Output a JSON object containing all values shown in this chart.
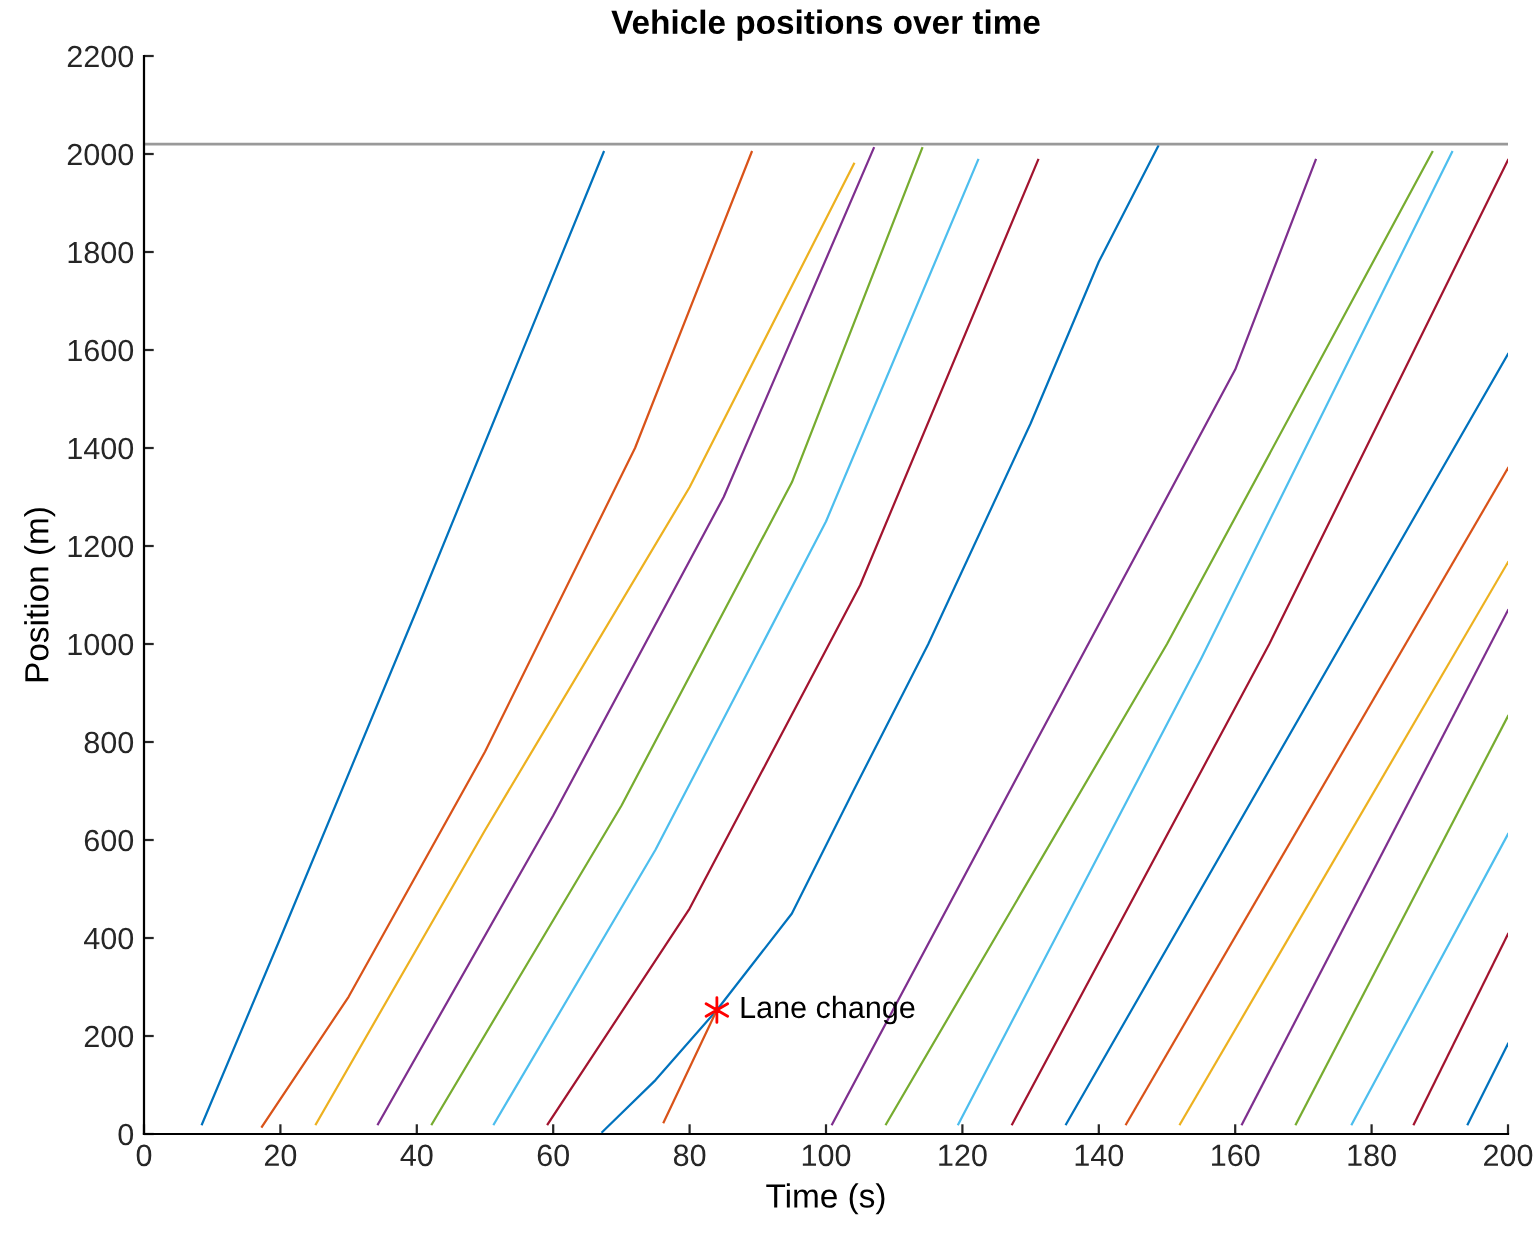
{
  "chart_data": {
    "type": "line",
    "title": "Vehicle positions over time",
    "xlabel": "Time (s)",
    "ylabel": "Position (m)",
    "xlim": [
      0,
      200
    ],
    "xticks": [
      0,
      20,
      40,
      60,
      80,
      100,
      120,
      140,
      160,
      180,
      200
    ],
    "ylim": [
      0,
      2200
    ],
    "yticks": [
      0,
      200,
      400,
      600,
      800,
      1000,
      1200,
      1400,
      1600,
      1800,
      2000,
      2200
    ],
    "grid": false,
    "legend": false,
    "line_style": "solid",
    "marker": "none",
    "ref_lines": [
      {
        "axis": "y",
        "value": 2020,
        "color": "#999999"
      }
    ],
    "annotations": [
      {
        "text": "Lane change",
        "x": 84,
        "y": 253
      }
    ],
    "series": [
      {
        "color": "#0072bd",
        "x": [
          8.5,
          20,
          40,
          67.4
        ],
        "values": [
          20,
          400,
          1070,
          2004
        ]
      },
      {
        "color": "#d95319",
        "x": [
          17.3,
          30,
          50,
          72,
          89.1
        ],
        "values": [
          15,
          280,
          780,
          1400,
          2004
        ]
      },
      {
        "color": "#edb120",
        "x": [
          25.2,
          50,
          80,
          104.1
        ],
        "values": [
          20,
          620,
          1320,
          1980
        ]
      },
      {
        "color": "#7e2f8e",
        "x": [
          34.3,
          60,
          85,
          107.0
        ],
        "values": [
          20,
          650,
          1300,
          2012
        ]
      },
      {
        "color": "#77ac30",
        "x": [
          42.2,
          70,
          95,
          114.1
        ],
        "values": [
          20,
          670,
          1330,
          2012
        ]
      },
      {
        "color": "#4dbeee",
        "x": [
          51.3,
          75,
          100,
          122.3
        ],
        "values": [
          20,
          580,
          1250,
          1988
        ]
      },
      {
        "color": "#a2142f",
        "x": [
          59.2,
          80,
          105,
          131.1
        ],
        "values": [
          20,
          460,
          1120,
          1988
        ]
      },
      {
        "color": "#0072bd",
        "x": [
          67.2,
          75,
          84,
          95,
          104,
          115,
          130,
          140,
          148.7
        ],
        "values": [
          4,
          110,
          253,
          450,
          700,
          1000,
          1450,
          1780,
          2016
        ]
      },
      {
        "color": "#d95319",
        "x": [
          76.2,
          84
        ],
        "values": [
          24,
          253
        ]
      },
      {
        "color": "#7e2f8e",
        "x": [
          100.9,
          130,
          160,
          171.8
        ],
        "values": [
          20,
          780,
          1560,
          1988
        ]
      },
      {
        "color": "#77ac30",
        "x": [
          108.8,
          150,
          188.9
        ],
        "values": [
          20,
          1000,
          2004
        ]
      },
      {
        "color": "#4dbeee",
        "x": [
          119.4,
          155,
          191.8
        ],
        "values": [
          20,
          970,
          2004
        ]
      },
      {
        "color": "#a2142f",
        "x": [
          127.3,
          165,
          200
        ],
        "values": [
          20,
          1000,
          1988
        ]
      },
      {
        "color": "#0072bd",
        "x": [
          135.2,
          200
        ],
        "values": [
          20,
          1592
        ]
      },
      {
        "color": "#d95319",
        "x": [
          144.0,
          200
        ],
        "values": [
          20,
          1359
        ]
      },
      {
        "color": "#edb120",
        "x": [
          151.9,
          200
        ],
        "values": [
          20,
          1167
        ]
      },
      {
        "color": "#7e2f8e",
        "x": [
          161.0,
          200
        ],
        "values": [
          20,
          1069
        ]
      },
      {
        "color": "#77ac30",
        "x": [
          168.9,
          200
        ],
        "values": [
          20,
          853
        ]
      },
      {
        "color": "#4dbeee",
        "x": [
          177.1,
          200
        ],
        "values": [
          20,
          612
        ]
      },
      {
        "color": "#a2142f",
        "x": [
          186.2,
          200
        ],
        "values": [
          20,
          408
        ]
      },
      {
        "color": "#0072bd",
        "x": [
          194.1,
          200
        ],
        "values": [
          20,
          184
        ]
      },
      {
        "type": "scatter",
        "marker": "cross",
        "color": "#ff0000",
        "x": [
          84
        ],
        "values": [
          253
        ]
      }
    ]
  }
}
